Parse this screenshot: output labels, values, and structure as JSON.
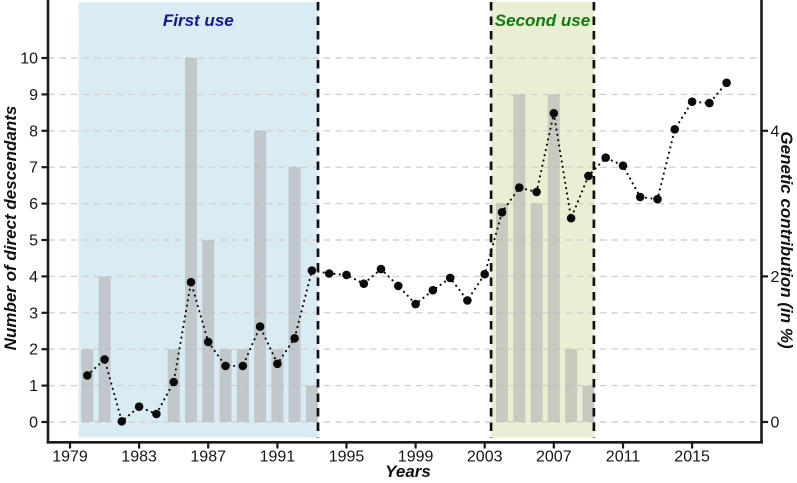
{
  "colors": {
    "background": "#ffffff",
    "bar": "#ababab",
    "bar_opacity": 0.55,
    "grid": "#d2d2d2",
    "axis": "#1a1a1a",
    "point": "#0b0b0b",
    "boundary_dash": "#111111",
    "text": "#161616",
    "first_use_fill": "#d9ebf3",
    "second_use_fill": "#e9efd3"
  },
  "chart_data": {
    "type": "bar+line dual-axis",
    "x_axis": {
      "label": "Years",
      "ticks": [
        1979,
        1983,
        1987,
        1991,
        1995,
        1999,
        2003,
        2007,
        2011,
        2015
      ],
      "range": [
        1977.7,
        2019.1
      ]
    },
    "y_axis_left": {
      "label": "Number of direct descendants",
      "ticks": [
        0,
        1,
        2,
        3,
        4,
        5,
        6,
        7,
        8,
        9,
        10
      ],
      "range": [
        0,
        11.6
      ],
      "grid": "horizontal dashed lines at each integer"
    },
    "y_axis_right": {
      "label": "Genetic contribution (in %)",
      "ticks": [
        0,
        2,
        4
      ],
      "scale_note": "1% on right axis = 2 units on left axis"
    },
    "regions": [
      {
        "id": "first-use",
        "label": "First use",
        "from": 1979.5,
        "to": 1993.35,
        "fill": "#d9ebf3",
        "label_color": "#15159b"
      },
      {
        "id": "second-use",
        "label": "Second use",
        "from": 2003.37,
        "to": 2009.32,
        "fill": "#e9efd3",
        "label_color": "#117a11"
      }
    ],
    "region_boundaries": [
      1993.35,
      2003.37,
      2009.32
    ],
    "series": [
      {
        "name": "Number of direct descendants",
        "type": "bar",
        "axis": "left",
        "points": [
          [
            1980,
            2
          ],
          [
            1981,
            4
          ],
          [
            1985,
            2
          ],
          [
            1986,
            10
          ],
          [
            1987,
            5
          ],
          [
            1988,
            2
          ],
          [
            1989,
            2
          ],
          [
            1990,
            8
          ],
          [
            1991,
            2
          ],
          [
            1992,
            7
          ],
          [
            1993,
            1
          ],
          [
            2004,
            6
          ],
          [
            2005,
            9
          ],
          [
            2006,
            6
          ],
          [
            2007,
            9
          ],
          [
            2008,
            2
          ],
          [
            2009,
            1
          ]
        ]
      },
      {
        "name": "Genetic contribution (in %)",
        "type": "dotted line with filled points",
        "axis": "right",
        "years": [
          1980,
          1981,
          1982,
          1983,
          1984,
          1985,
          1986,
          1987,
          1988,
          1989,
          1990,
          1991,
          1992,
          1993,
          1994,
          1995,
          1996,
          1997,
          1998,
          1999,
          2000,
          2001,
          2002,
          2003,
          2004,
          2005,
          2006,
          2007,
          2008,
          2009,
          2010,
          2011,
          2012,
          2013,
          2014,
          2015,
          2016,
          2017
        ],
        "values_pct": [
          0.64,
          0.86,
          0.01,
          0.21,
          0.11,
          0.55,
          1.92,
          1.1,
          0.77,
          0.77,
          1.31,
          0.8,
          1.15,
          2.08,
          2.04,
          2.02,
          1.9,
          2.1,
          1.87,
          1.62,
          1.81,
          1.98,
          1.67,
          2.03,
          2.88,
          3.22,
          3.16,
          4.24,
          2.8,
          3.38,
          3.63,
          3.52,
          3.09,
          3.06,
          4.02,
          4.4,
          4.38,
          4.66
        ]
      }
    ]
  }
}
